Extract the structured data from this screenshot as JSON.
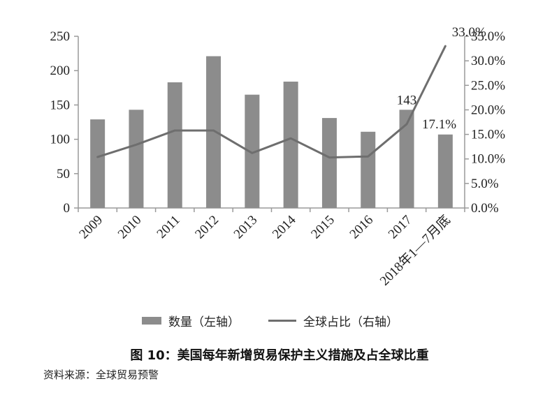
{
  "colors": {
    "bar": "#8c8c8c",
    "line": "#6e6e6e",
    "axis": "#9a9a9a",
    "text": "#222222"
  },
  "chart_data": {
    "type": "bar",
    "categories": [
      "2009",
      "2010",
      "2011",
      "2012",
      "2013",
      "2014",
      "2015",
      "2016",
      "2017",
      "2018年1—7月底"
    ],
    "series": [
      {
        "name": "数量（左轴）",
        "axis": "left",
        "render": "bar",
        "values": [
          129,
          143,
          183,
          221,
          165,
          184,
          131,
          111,
          143,
          107
        ]
      },
      {
        "name": "全球占比（右轴）",
        "axis": "right",
        "render": "line",
        "unit": "%",
        "values": [
          10.4,
          12.9,
          15.8,
          15.8,
          11.2,
          14.2,
          10.3,
          10.5,
          17.1,
          33.0
        ]
      }
    ],
    "left_axis": {
      "ylim": [
        0,
        250
      ],
      "ticks": [
        0,
        50,
        100,
        150,
        200,
        250
      ]
    },
    "right_axis": {
      "ylim": [
        0,
        35
      ],
      "ticks": [
        "0.0%",
        "5.0%",
        "10.0%",
        "15.0%",
        "20.0%",
        "25.0%",
        "30.0%",
        "35.0%"
      ]
    },
    "annotations": [
      {
        "series": 0,
        "index": 8,
        "text": "143"
      },
      {
        "series": 1,
        "index": 8,
        "text": "17.1%"
      },
      {
        "series": 1,
        "index": 9,
        "text": "33.0%"
      }
    ],
    "legend_position": "bottom",
    "grid": false
  },
  "legend": {
    "bar_label": "数量（左轴）",
    "line_label": "全球占比（右轴）"
  },
  "caption": "图 10：美国每年新增贸易保护主义措施及占全球比重",
  "source": "资料来源：全球贸易预警"
}
